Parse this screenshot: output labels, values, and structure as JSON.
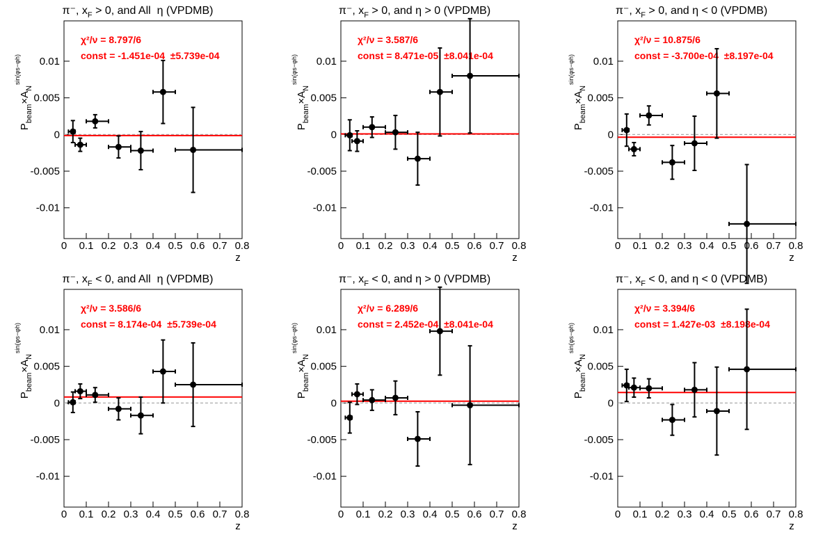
{
  "chart_data": [
    {
      "type": "errorbar",
      "title": "π⁻, xF > 0, and All  η (VPDMB)",
      "ylabel": [
        "P",
        "beam",
        "×A",
        "N"
      ],
      "ylabel_superscript": "sin(φs−φh)",
      "xlabel": "z",
      "annotations": [
        "χ²/ν = 8.797/6",
        "const = -1.451e-04  ±5.739e-04"
      ],
      "fit_const": -0.0001451,
      "x": [
        0.04,
        0.073,
        0.14,
        0.245,
        0.345,
        0.445,
        0.58
      ],
      "xerr_minus": [
        0.02,
        0.023,
        0.04,
        0.045,
        0.045,
        0.045,
        0.08
      ],
      "xerr_plus": [
        0.01,
        0.027,
        0.06,
        0.055,
        0.055,
        0.055,
        0.22
      ],
      "values": [
        0.0004,
        -0.0014,
        0.0018,
        -0.0017,
        -0.0022,
        0.0058,
        -0.0021
      ],
      "yerr": [
        0.0015,
        0.0009,
        0.0009,
        0.0015,
        0.0026,
        0.0043,
        0.0058
      ],
      "xlim": [
        0,
        0.8
      ],
      "xticks": [
        0,
        0.1,
        0.2,
        0.3,
        0.4,
        0.5,
        0.6,
        0.7,
        0.8
      ],
      "ylim": [
        -0.0142,
        0.0155
      ],
      "yticks": [
        -0.01,
        -0.005,
        0,
        0.005,
        0.01
      ],
      "color": "#000000",
      "fit_color": "#ff0000"
    },
    {
      "type": "errorbar",
      "title": "π⁻, xF > 0, and η > 0 (VPDMB)",
      "ylabel": [
        "P",
        "beam",
        "×A",
        "N"
      ],
      "ylabel_superscript": "sin(φs−φh)",
      "xlabel": "z",
      "annotations": [
        "χ²/ν = 3.587/6",
        "const = 8.471e-05  ±8.041e-04"
      ],
      "fit_const": 8.471e-05,
      "x": [
        0.04,
        0.073,
        0.14,
        0.245,
        0.345,
        0.445,
        0.58
      ],
      "xerr_minus": [
        0.02,
        0.023,
        0.04,
        0.045,
        0.045,
        0.045,
        0.08
      ],
      "xerr_plus": [
        0.01,
        0.027,
        0.06,
        0.055,
        0.055,
        0.055,
        0.22
      ],
      "values": [
        -0.0001,
        -0.0009,
        0.001,
        0.0003,
        -0.0033,
        0.0058,
        0.008
      ],
      "yerr": [
        0.0021,
        0.0014,
        0.0014,
        0.0023,
        0.0036,
        0.006,
        0.0078
      ],
      "xlim": [
        0,
        0.8
      ],
      "xticks": [
        0,
        0.1,
        0.2,
        0.3,
        0.4,
        0.5,
        0.6,
        0.7,
        0.8
      ],
      "ylim": [
        -0.0142,
        0.0155
      ],
      "yticks": [
        -0.01,
        -0.005,
        0,
        0.005,
        0.01
      ],
      "color": "#000000",
      "fit_color": "#ff0000"
    },
    {
      "type": "errorbar",
      "title": "π⁻, xF > 0, and η < 0 (VPDMB)",
      "ylabel": [
        "P",
        "beam",
        "×A",
        "N"
      ],
      "ylabel_superscript": "sin(φs−φh)",
      "xlabel": "z",
      "annotations": [
        "χ²/ν = 10.875/6",
        "const = -3.700e-04  ±8.197e-04"
      ],
      "fit_const": -0.00037,
      "x": [
        0.04,
        0.073,
        0.14,
        0.245,
        0.345,
        0.445,
        0.58
      ],
      "xerr_minus": [
        0.02,
        0.023,
        0.04,
        0.045,
        0.045,
        0.045,
        0.08
      ],
      "xerr_plus": [
        0.01,
        0.027,
        0.06,
        0.055,
        0.055,
        0.055,
        0.22
      ],
      "values": [
        0.0006,
        -0.002,
        0.0026,
        -0.0038,
        -0.0012,
        0.0056,
        -0.0122
      ],
      "yerr": [
        0.0022,
        0.0009,
        0.0013,
        0.0023,
        0.0037,
        0.0061,
        0.0081
      ],
      "xlim": [
        0,
        0.8
      ],
      "xticks": [
        0,
        0.1,
        0.2,
        0.3,
        0.4,
        0.5,
        0.6,
        0.7,
        0.8
      ],
      "ylim": [
        -0.0142,
        0.0155
      ],
      "yticks": [
        -0.01,
        -0.005,
        0,
        0.005,
        0.01
      ],
      "color": "#000000",
      "fit_color": "#ff0000"
    },
    {
      "type": "errorbar",
      "title": "π⁻, xF < 0, and All  η (VPDMB)",
      "ylabel": [
        "P",
        "beam",
        "×A",
        "N"
      ],
      "ylabel_superscript": "sin(φs−φh)",
      "xlabel": "z",
      "annotations": [
        "χ²/ν = 3.586/6",
        "const = 8.174e-04  ±5.739e-04"
      ],
      "fit_const": 0.0008174,
      "x": [
        0.04,
        0.073,
        0.14,
        0.245,
        0.345,
        0.445,
        0.58
      ],
      "xerr_minus": [
        0.02,
        0.023,
        0.04,
        0.045,
        0.045,
        0.045,
        0.08
      ],
      "xerr_plus": [
        0.01,
        0.027,
        0.06,
        0.055,
        0.055,
        0.055,
        0.22
      ],
      "values": [
        0.0001,
        0.0016,
        0.0011,
        -0.0008,
        -0.0017,
        0.0043,
        0.0025
      ],
      "yerr": [
        0.0014,
        0.001,
        0.001,
        0.0015,
        0.0025,
        0.0043,
        0.0057
      ],
      "xlim": [
        0,
        0.8
      ],
      "xticks": [
        0,
        0.1,
        0.2,
        0.3,
        0.4,
        0.5,
        0.6,
        0.7,
        0.8
      ],
      "ylim": [
        -0.0142,
        0.0155
      ],
      "yticks": [
        -0.01,
        -0.005,
        0,
        0.005,
        0.01
      ],
      "color": "#000000",
      "fit_color": "#ff0000"
    },
    {
      "type": "errorbar",
      "title": "π⁻, xF < 0, and η > 0 (VPDMB)",
      "ylabel": [
        "P",
        "beam",
        "×A",
        "N"
      ],
      "ylabel_superscript": "sin(φs−φh)",
      "xlabel": "z",
      "annotations": [
        "χ²/ν = 6.289/6",
        "const = 2.452e-04  ±8.041e-04"
      ],
      "fit_const": 0.0002452,
      "x": [
        0.04,
        0.073,
        0.14,
        0.245,
        0.345,
        0.445,
        0.58
      ],
      "xerr_minus": [
        0.02,
        0.023,
        0.04,
        0.045,
        0.045,
        0.045,
        0.08
      ],
      "xerr_plus": [
        0.01,
        0.027,
        0.06,
        0.055,
        0.055,
        0.055,
        0.22
      ],
      "values": [
        -0.002,
        0.0012,
        0.0004,
        0.0007,
        -0.0049,
        0.0098,
        -0.0003
      ],
      "yerr": [
        0.0021,
        0.0014,
        0.0014,
        0.0023,
        0.0037,
        0.006,
        0.0081
      ],
      "xlim": [
        0,
        0.8
      ],
      "xticks": [
        0,
        0.1,
        0.2,
        0.3,
        0.4,
        0.5,
        0.6,
        0.7,
        0.8
      ],
      "ylim": [
        -0.0142,
        0.0155
      ],
      "yticks": [
        -0.01,
        -0.005,
        0,
        0.005,
        0.01
      ],
      "color": "#000000",
      "fit_color": "#ff0000"
    },
    {
      "type": "errorbar",
      "title": "π⁻, xF < 0, and η < 0 (VPDMB)",
      "ylabel": [
        "P",
        "beam",
        "×A",
        "N"
      ],
      "ylabel_superscript": "sin(φs−φh)",
      "xlabel": "z",
      "annotations": [
        "χ²/ν = 3.394/6",
        "const = 1.427e-03  ±8.198e-04"
      ],
      "fit_const": 0.001427,
      "x": [
        0.04,
        0.073,
        0.14,
        0.245,
        0.345,
        0.445,
        0.58
      ],
      "xerr_minus": [
        0.02,
        0.023,
        0.04,
        0.045,
        0.045,
        0.045,
        0.08
      ],
      "xerr_plus": [
        0.01,
        0.027,
        0.06,
        0.055,
        0.055,
        0.055,
        0.22
      ],
      "values": [
        0.0024,
        0.0021,
        0.002,
        -0.0023,
        0.0018,
        -0.0011,
        0.0046
      ],
      "yerr": [
        0.0022,
        0.0013,
        0.0013,
        0.0021,
        0.0037,
        0.006,
        0.0082
      ],
      "xlim": [
        0,
        0.8
      ],
      "xticks": [
        0,
        0.1,
        0.2,
        0.3,
        0.4,
        0.5,
        0.6,
        0.7,
        0.8
      ],
      "ylim": [
        -0.0142,
        0.0155
      ],
      "yticks": [
        -0.01,
        -0.005,
        0,
        0.005,
        0.01
      ],
      "color": "#000000",
      "fit_color": "#ff0000"
    }
  ]
}
